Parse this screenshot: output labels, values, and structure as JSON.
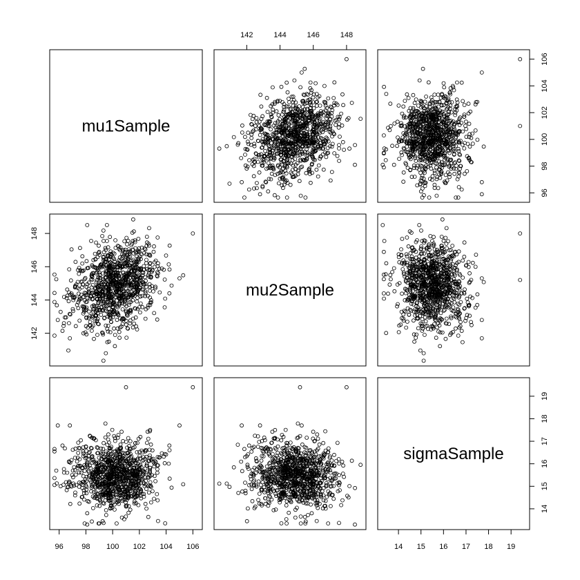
{
  "chart_data": {
    "type": "scatter",
    "subtype": "pairs-matrix",
    "variables": [
      {
        "name": "mu1Sample",
        "range": [
          95.5,
          106.5
        ],
        "ticks": [
          96,
          98,
          100,
          102,
          104,
          106
        ],
        "mean": 100.2,
        "sd": 1.55
      },
      {
        "name": "mu2Sample",
        "range": [
          140.2,
          149.0
        ],
        "ticks": [
          142,
          144,
          146,
          148
        ],
        "mean": 144.9,
        "sd": 1.3
      },
      {
        "name": "sigmaSample",
        "range": [
          13.2,
          19.7
        ],
        "ticks": [
          14,
          15,
          16,
          17,
          18,
          19
        ],
        "mean": 15.45,
        "sd": 0.75
      }
    ],
    "n_samples": 1000,
    "correlations": {
      "mu1_mu2": 0.25,
      "mu1_sigma": 0.0,
      "mu2_sigma": -0.1
    },
    "outliers": [
      {
        "mu1": 106.0,
        "mu2": 148.0,
        "sigma": 19.4
      },
      {
        "mu1": 101.0,
        "mu2": 145.2,
        "sigma": 19.4
      },
      {
        "mu1": 95.9,
        "mu2": 142.8,
        "sigma": 17.7
      },
      {
        "mu1": 105.0,
        "mu2": 145.3,
        "sigma": 17.7
      },
      {
        "mu1": 96.8,
        "mu2": 141.7,
        "sigma": 17.7
      },
      {
        "mu1": 102.8,
        "mu2": 143.7,
        "sigma": 17.5
      },
      {
        "mu1": 98.1,
        "mu2": 148.5,
        "sigma": 13.3
      }
    ],
    "layout": {
      "axes_bottom": [
        "mu1Sample",
        null,
        "sigmaSample"
      ],
      "axes_top": [
        null,
        "mu2Sample",
        null
      ],
      "axes_left": [
        null,
        "mu2Sample",
        null
      ],
      "axes_right": [
        "mu1Sample",
        null,
        "sigmaSample"
      ]
    },
    "marker": "open-circle",
    "title": "",
    "grid": false
  }
}
